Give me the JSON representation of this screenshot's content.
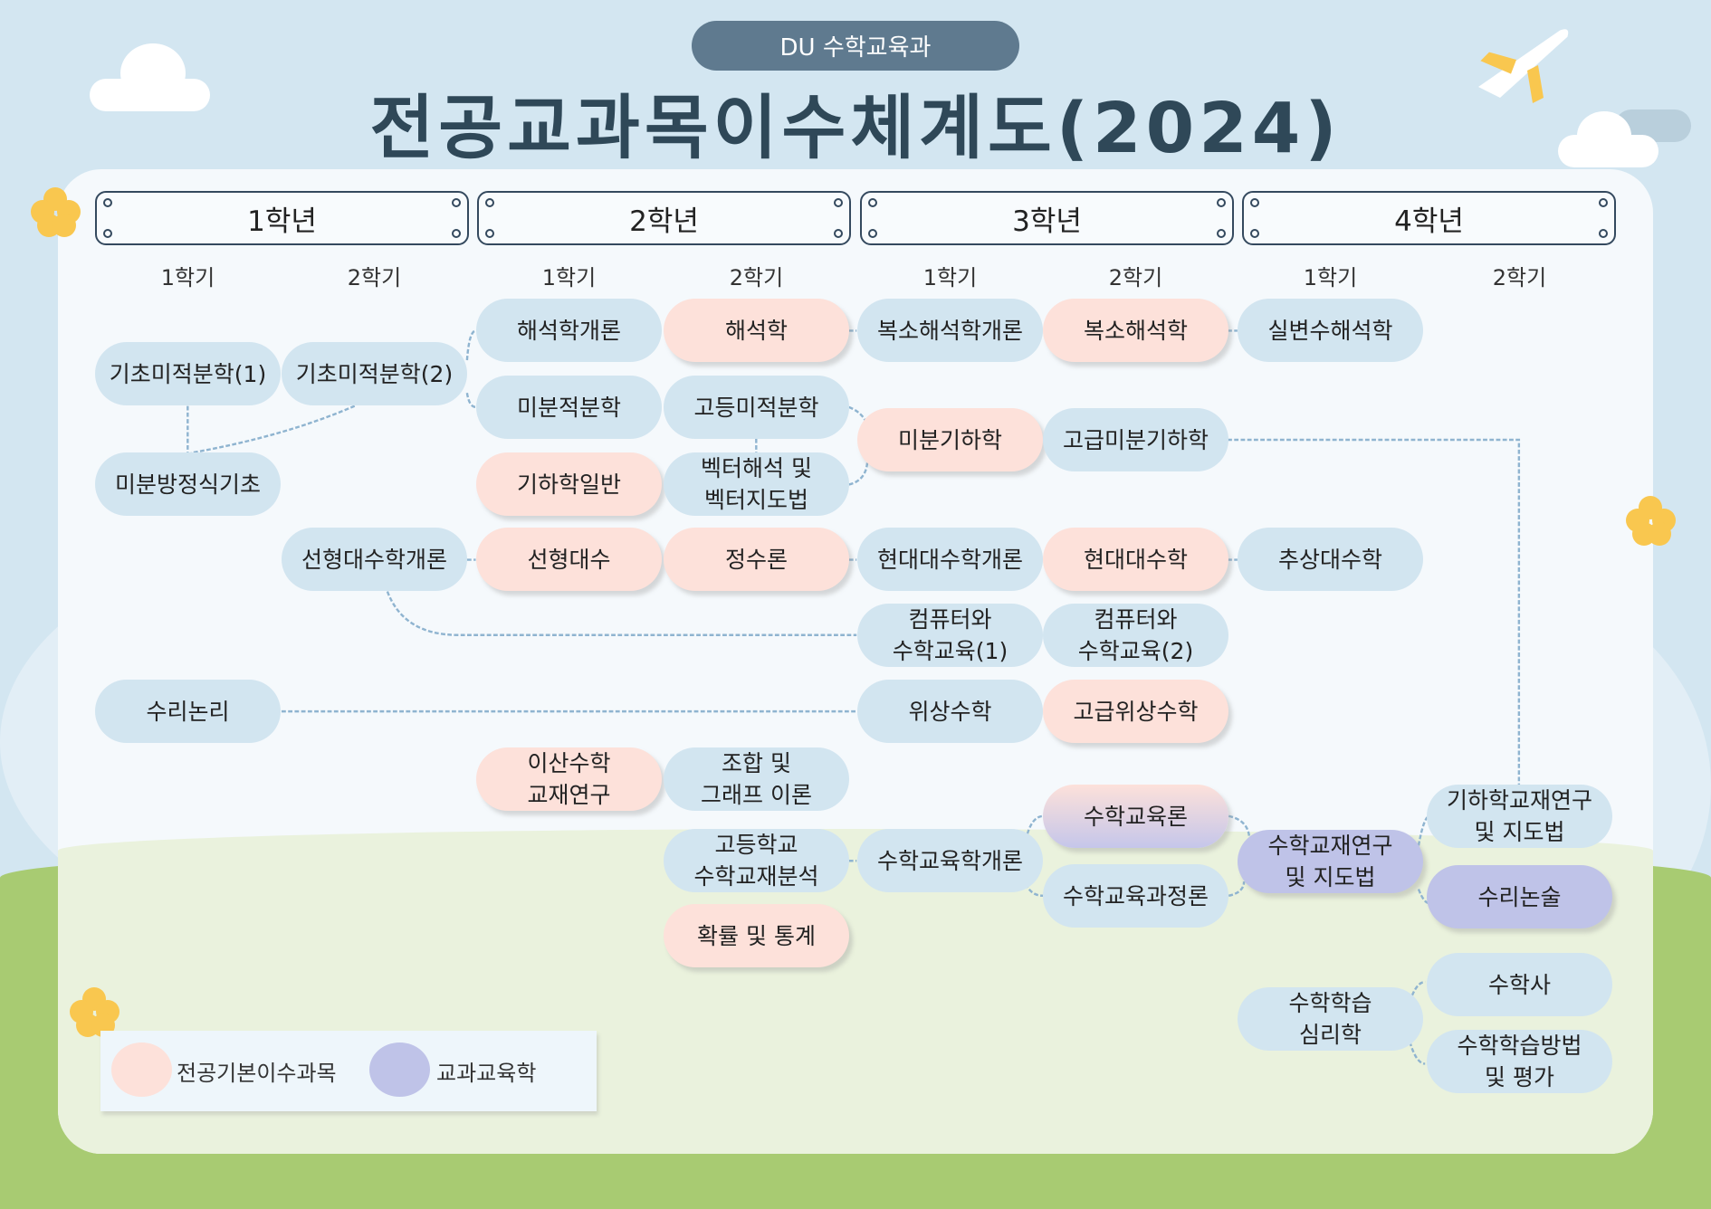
{
  "header": {
    "department": "DU 수학교육과",
    "title": "전공교과목이수체계도(2024)"
  },
  "years": [
    "1학년",
    "2학년",
    "3학년",
    "4학년"
  ],
  "semesters": [
    "1학기",
    "2학기",
    "1학기",
    "2학기",
    "1학기",
    "2학기",
    "1학기",
    "2학기"
  ],
  "courses": [
    {
      "name": "기초미적분학(1)",
      "type": "basic"
    },
    {
      "name": "기초미적분학(2)",
      "type": "basic"
    },
    {
      "name": "미분방정식기초",
      "type": "basic"
    },
    {
      "name": "해석학개론",
      "type": "basic"
    },
    {
      "name": "해석학",
      "type": "major-core"
    },
    {
      "name": "미분적분학",
      "type": "basic"
    },
    {
      "name": "고등미적분학",
      "type": "basic"
    },
    {
      "name": "기하학일반",
      "type": "major-core"
    },
    {
      "name": "벡터해석 및\n벡터지도법",
      "type": "basic"
    },
    {
      "name": "복소해석학개론",
      "type": "basic"
    },
    {
      "name": "복소해석학",
      "type": "major-core"
    },
    {
      "name": "실변수해석학",
      "type": "basic"
    },
    {
      "name": "미분기하학",
      "type": "major-core"
    },
    {
      "name": "고급미분기하학",
      "type": "basic"
    },
    {
      "name": "선형대수학개론",
      "type": "basic"
    },
    {
      "name": "선형대수",
      "type": "major-core"
    },
    {
      "name": "정수론",
      "type": "major-core"
    },
    {
      "name": "현대대수학개론",
      "type": "basic"
    },
    {
      "name": "현대대수학",
      "type": "major-core"
    },
    {
      "name": "추상대수학",
      "type": "basic"
    },
    {
      "name": "컴퓨터와\n수학교육(1)",
      "type": "basic"
    },
    {
      "name": "컴퓨터와\n수학교육(2)",
      "type": "basic"
    },
    {
      "name": "수리논리",
      "type": "basic"
    },
    {
      "name": "위상수학",
      "type": "basic"
    },
    {
      "name": "고급위상수학",
      "type": "major-core"
    },
    {
      "name": "이산수학\n교재연구",
      "type": "major-core"
    },
    {
      "name": "조합 및\n그래프 이론",
      "type": "basic"
    },
    {
      "name": "고등학교\n수학교재분석",
      "type": "basic"
    },
    {
      "name": "확률 및 통계",
      "type": "major-core"
    },
    {
      "name": "수학교육학개론",
      "type": "basic"
    },
    {
      "name": "수학교육론",
      "type": "both"
    },
    {
      "name": "수학교육과정론",
      "type": "basic"
    },
    {
      "name": "수학교재연구\n및 지도법",
      "type": "subject-education"
    },
    {
      "name": "기하학교재연구\n및 지도법",
      "type": "basic"
    },
    {
      "name": "수리논술",
      "type": "subject-education"
    },
    {
      "name": "수학학습\n심리학",
      "type": "basic"
    },
    {
      "name": "수학사",
      "type": "basic"
    },
    {
      "name": "수학학습방법\n및 평가",
      "type": "basic"
    }
  ],
  "legend": {
    "major_core": "전공기본이수과목",
    "subject_education": "교과교육학"
  },
  "colors": {
    "basic": "#d2e5f0",
    "major_core": "#fde1da",
    "subject_education": "#bfc3e8",
    "title": "#2f4858",
    "connector": "#8fb4d0"
  }
}
